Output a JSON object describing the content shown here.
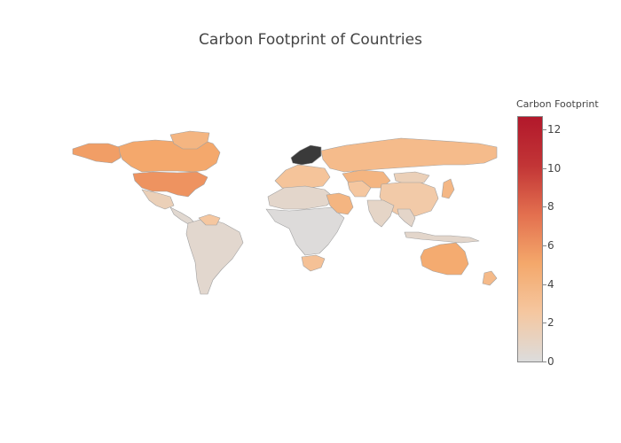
{
  "title": "Carbon Footprint of Countries",
  "colorbar": {
    "title": "Carbon Footprint",
    "ticks": [
      "0",
      "2",
      "4",
      "6",
      "8",
      "10",
      "12"
    ],
    "min": 0,
    "max": 12.6,
    "colorscale": [
      "#dcdcdc",
      "#f5c7a0",
      "#f4a86b",
      "#e3704f",
      "#c23536",
      "#b2182b"
    ]
  },
  "chart_data": {
    "type": "choropleth",
    "title": "Carbon Footprint of Countries",
    "colorbar_title": "Carbon Footprint",
    "range": [
      0,
      12.6
    ],
    "regions": [
      {
        "name": "Canada",
        "value": 5.0
      },
      {
        "name": "Alaska",
        "value": 5.5
      },
      {
        "name": "Greenland",
        "value": 4.0
      },
      {
        "name": "United States",
        "value": 6.0
      },
      {
        "name": "Mexico",
        "value": 1.5
      },
      {
        "name": "Central America",
        "value": 0.5
      },
      {
        "name": "South America",
        "value": 0.6
      },
      {
        "name": "Venezuela",
        "value": 2.5
      },
      {
        "name": "Europe",
        "value": 2.8
      },
      {
        "name": "Norway/Sweden/Finland",
        "value": null
      },
      {
        "name": "Russia",
        "value": 3.5
      },
      {
        "name": "Kazakhstan",
        "value": 4.0
      },
      {
        "name": "Mongolia",
        "value": 1.5
      },
      {
        "name": "China",
        "value": 2.2
      },
      {
        "name": "Japan",
        "value": 3.8
      },
      {
        "name": "North Africa",
        "value": 0.7
      },
      {
        "name": "Sub-Saharan Africa",
        "value": 0.1
      },
      {
        "name": "South Africa",
        "value": 3.0
      },
      {
        "name": "Saudi Arabia",
        "value": 4.0
      },
      {
        "name": "Iran",
        "value": 2.5
      },
      {
        "name": "India",
        "value": 0.9
      },
      {
        "name": "Southeast Asia",
        "value": 0.8
      },
      {
        "name": "Indonesia",
        "value": 0.7
      },
      {
        "name": "Australia",
        "value": 4.8
      },
      {
        "name": "New Zealand",
        "value": 3.6
      }
    ]
  }
}
